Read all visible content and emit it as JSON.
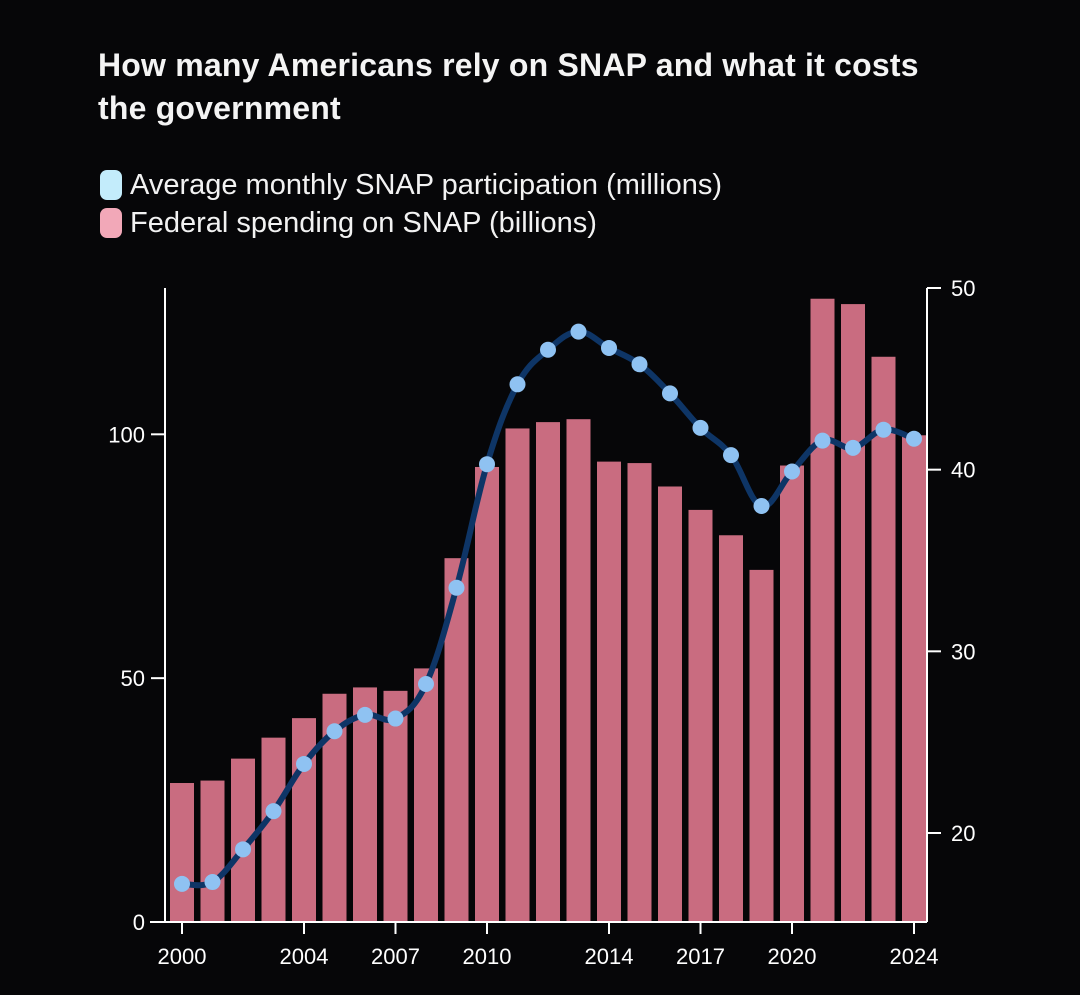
{
  "title": "How many Americans rely on SNAP and what it costs the government",
  "legend": {
    "participation": "Average monthly SNAP participation (millions)",
    "spending": "Federal spending on SNAP (billions)"
  },
  "colors": {
    "background": "#060608",
    "bar": "#c96c80",
    "line": "#0e3566",
    "point": "#8fc2f2",
    "legend_participation": "#c3ecfb",
    "legend_spending": "#f2a8b8",
    "axis": "#ffffff"
  },
  "chart_data": {
    "type": "bar+line",
    "title": "How many Americans rely on SNAP and what it costs the government",
    "x": [
      2000,
      2001,
      2002,
      2003,
      2004,
      2005,
      2006,
      2007,
      2008,
      2009,
      2010,
      2011,
      2012,
      2013,
      2014,
      2015,
      2016,
      2017,
      2018,
      2019,
      2020,
      2021,
      2022,
      2023,
      2024
    ],
    "x_tick_labels": [
      "2000",
      "2004",
      "2007",
      "2010",
      "2014",
      "2017",
      "2020",
      "2024"
    ],
    "x_tick_values": [
      2000,
      2004,
      2007,
      2010,
      2014,
      2017,
      2020,
      2024
    ],
    "series": [
      {
        "name": "Federal spending on SNAP (billions)",
        "type": "bar",
        "axis": "left",
        "values": [
          28.5,
          29.0,
          33.5,
          37.8,
          41.8,
          46.8,
          48.1,
          47.4,
          52.0,
          74.6,
          93.3,
          101.2,
          102.5,
          103.1,
          94.4,
          94.1,
          89.3,
          84.5,
          79.3,
          72.2,
          93.6,
          127.8,
          126.7,
          115.9,
          99.8
        ]
      },
      {
        "name": "Average monthly SNAP participation (millions)",
        "type": "line",
        "axis": "right",
        "values": [
          17.2,
          17.3,
          19.1,
          21.2,
          23.8,
          25.6,
          26.5,
          26.3,
          28.2,
          33.5,
          40.3,
          44.7,
          46.6,
          47.6,
          46.7,
          45.8,
          44.2,
          42.3,
          40.8,
          38.0,
          39.9,
          41.6,
          41.2,
          42.2,
          41.7
        ]
      }
    ],
    "y_left": {
      "ticks": [
        0,
        50,
        100
      ],
      "range": [
        0,
        130
      ]
    },
    "y_right": {
      "ticks": [
        20,
        30,
        40,
        50
      ],
      "range": [
        15.1,
        50
      ]
    }
  }
}
